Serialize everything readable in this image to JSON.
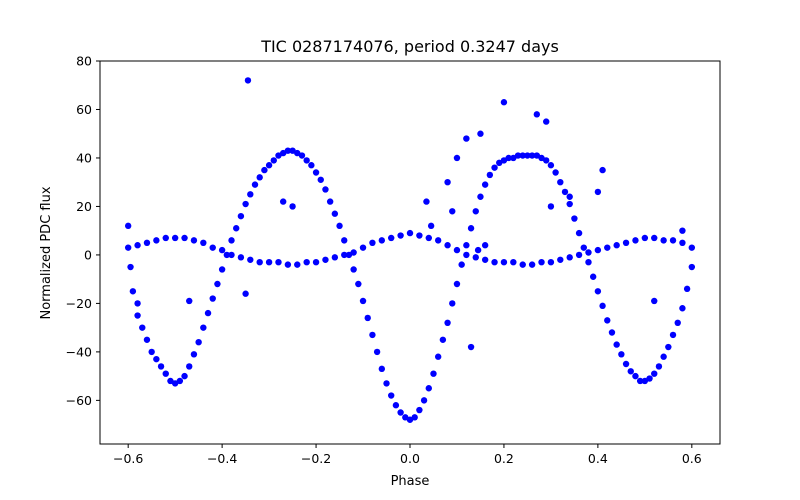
{
  "chart_data": {
    "type": "scatter",
    "title": "TIC 0287174076, period 0.3247 days",
    "xlabel": "Phase",
    "ylabel": "Normalized PDC flux",
    "xlim": [
      -0.66,
      0.66
    ],
    "ylim": [
      -78,
      80
    ],
    "xticks": [
      {
        "value": -0.6,
        "label": "−0.6"
      },
      {
        "value": -0.4,
        "label": "−0.4"
      },
      {
        "value": -0.2,
        "label": "−0.2"
      },
      {
        "value": 0.0,
        "label": "0.0"
      },
      {
        "value": 0.2,
        "label": "0.2"
      },
      {
        "value": 0.4,
        "label": "0.4"
      },
      {
        "value": 0.6,
        "label": "0.6"
      }
    ],
    "yticks": [
      {
        "value": -60,
        "label": "−60"
      },
      {
        "value": -40,
        "label": "−40"
      },
      {
        "value": -20,
        "label": "−20"
      },
      {
        "value": 0,
        "label": "0"
      },
      {
        "value": 20,
        "label": "20"
      },
      {
        "value": 40,
        "label": "40"
      },
      {
        "value": 60,
        "label": "60"
      },
      {
        "value": 80,
        "label": "80"
      }
    ],
    "grid": false,
    "marker_color": "#0000ff",
    "series": [
      {
        "points": [
          [
            -0.6,
            12
          ],
          [
            -0.595,
            -5
          ],
          [
            -0.59,
            -15
          ],
          [
            -0.58,
            -25
          ],
          [
            -0.57,
            -30
          ],
          [
            -0.56,
            -35
          ],
          [
            -0.55,
            -40
          ],
          [
            -0.54,
            -43
          ],
          [
            -0.53,
            -46
          ],
          [
            -0.52,
            -49
          ],
          [
            -0.51,
            -52
          ],
          [
            -0.5,
            -53
          ],
          [
            -0.49,
            -52
          ],
          [
            -0.48,
            -50
          ],
          [
            -0.47,
            -46
          ],
          [
            -0.46,
            -41
          ],
          [
            -0.45,
            -36
          ],
          [
            -0.44,
            -30
          ],
          [
            -0.43,
            -24
          ],
          [
            -0.42,
            -18
          ],
          [
            -0.41,
            -12
          ],
          [
            -0.4,
            -6
          ],
          [
            -0.39,
            0
          ],
          [
            -0.38,
            6
          ],
          [
            -0.37,
            11
          ],
          [
            -0.36,
            16
          ],
          [
            -0.35,
            21
          ],
          [
            -0.34,
            25
          ],
          [
            -0.33,
            29
          ],
          [
            -0.32,
            32
          ],
          [
            -0.31,
            35
          ],
          [
            -0.3,
            37
          ],
          [
            -0.29,
            39
          ],
          [
            -0.28,
            41
          ],
          [
            -0.27,
            42
          ],
          [
            -0.26,
            43
          ],
          [
            -0.25,
            43
          ],
          [
            -0.24,
            42
          ],
          [
            -0.23,
            41
          ],
          [
            -0.22,
            39
          ],
          [
            -0.21,
            37
          ],
          [
            -0.2,
            34
          ],
          [
            -0.19,
            31
          ],
          [
            -0.18,
            27
          ],
          [
            -0.17,
            22
          ],
          [
            -0.16,
            17
          ],
          [
            -0.15,
            12
          ],
          [
            -0.14,
            6
          ],
          [
            -0.13,
            0
          ],
          [
            -0.12,
            -6
          ],
          [
            -0.11,
            -12
          ],
          [
            -0.1,
            -19
          ],
          [
            -0.09,
            -26
          ],
          [
            -0.08,
            -33
          ],
          [
            -0.07,
            -40
          ],
          [
            -0.06,
            -47
          ],
          [
            -0.05,
            -53
          ],
          [
            -0.04,
            -58
          ],
          [
            -0.03,
            -62
          ],
          [
            -0.02,
            -65
          ],
          [
            -0.01,
            -67
          ],
          [
            0.0,
            -68
          ],
          [
            0.01,
            -67
          ],
          [
            0.02,
            -64
          ],
          [
            0.03,
            -60
          ],
          [
            0.04,
            -55
          ],
          [
            0.05,
            -49
          ],
          [
            0.06,
            -42
          ],
          [
            0.07,
            -35
          ],
          [
            0.08,
            -28
          ],
          [
            0.09,
            -20
          ],
          [
            0.1,
            -12
          ],
          [
            0.11,
            -4
          ],
          [
            0.12,
            4
          ],
          [
            0.13,
            11
          ],
          [
            0.14,
            18
          ],
          [
            0.15,
            24
          ],
          [
            0.16,
            29
          ],
          [
            0.17,
            33
          ],
          [
            0.18,
            36
          ],
          [
            0.19,
            38
          ],
          [
            0.2,
            39
          ],
          [
            0.21,
            40
          ],
          [
            0.22,
            40
          ],
          [
            0.23,
            41
          ],
          [
            0.24,
            41
          ],
          [
            0.25,
            41
          ],
          [
            0.26,
            41
          ],
          [
            0.27,
            41
          ],
          [
            0.28,
            40
          ],
          [
            0.29,
            39
          ],
          [
            0.3,
            37
          ],
          [
            0.31,
            34
          ],
          [
            0.32,
            30
          ],
          [
            0.33,
            26
          ],
          [
            0.34,
            21
          ],
          [
            0.35,
            15
          ],
          [
            0.36,
            9
          ],
          [
            0.37,
            3
          ],
          [
            0.38,
            -3
          ],
          [
            0.39,
            -9
          ],
          [
            0.4,
            -15
          ],
          [
            0.41,
            -21
          ],
          [
            0.42,
            -27
          ],
          [
            0.43,
            -32
          ],
          [
            0.44,
            -37
          ],
          [
            0.45,
            -41
          ],
          [
            0.46,
            -45
          ],
          [
            0.47,
            -48
          ],
          [
            0.48,
            -50
          ],
          [
            0.49,
            -52
          ],
          [
            0.5,
            -52
          ],
          [
            0.51,
            -51
          ],
          [
            0.52,
            -49
          ],
          [
            0.53,
            -46
          ],
          [
            0.54,
            -42
          ],
          [
            0.55,
            -38
          ],
          [
            0.56,
            -33
          ],
          [
            0.57,
            -28
          ],
          [
            0.58,
            -22
          ],
          [
            0.59,
            -14
          ],
          [
            0.6,
            -5
          ],
          [
            -0.6,
            3
          ],
          [
            -0.58,
            4
          ],
          [
            -0.56,
            5
          ],
          [
            -0.54,
            6
          ],
          [
            -0.52,
            7
          ],
          [
            -0.5,
            7
          ],
          [
            -0.48,
            7
          ],
          [
            -0.46,
            6
          ],
          [
            -0.44,
            5
          ],
          [
            -0.42,
            3
          ],
          [
            -0.4,
            2
          ],
          [
            -0.38,
            0
          ],
          [
            -0.36,
            -1
          ],
          [
            -0.34,
            -2
          ],
          [
            -0.32,
            -3
          ],
          [
            -0.3,
            -3
          ],
          [
            -0.28,
            -3
          ],
          [
            -0.26,
            -4
          ],
          [
            -0.24,
            -4
          ],
          [
            -0.22,
            -3
          ],
          [
            -0.2,
            -3
          ],
          [
            -0.18,
            -2
          ],
          [
            -0.16,
            -1
          ],
          [
            -0.14,
            0
          ],
          [
            -0.12,
            1
          ],
          [
            -0.1,
            3
          ],
          [
            -0.08,
            5
          ],
          [
            -0.06,
            6
          ],
          [
            -0.04,
            7
          ],
          [
            -0.02,
            8
          ],
          [
            0.0,
            9
          ],
          [
            0.02,
            8
          ],
          [
            0.04,
            7
          ],
          [
            0.06,
            6
          ],
          [
            0.08,
            4
          ],
          [
            0.1,
            2
          ],
          [
            0.12,
            0
          ],
          [
            0.14,
            -1
          ],
          [
            0.16,
            -2
          ],
          [
            0.18,
            -3
          ],
          [
            0.2,
            -3
          ],
          [
            0.22,
            -3
          ],
          [
            0.24,
            -4
          ],
          [
            0.26,
            -4
          ],
          [
            0.28,
            -3
          ],
          [
            0.3,
            -3
          ],
          [
            0.32,
            -2
          ],
          [
            0.34,
            -1
          ],
          [
            0.36,
            0
          ],
          [
            0.38,
            1
          ],
          [
            0.4,
            2
          ],
          [
            0.42,
            3
          ],
          [
            0.44,
            4
          ],
          [
            0.46,
            5
          ],
          [
            0.48,
            6
          ],
          [
            0.5,
            7
          ],
          [
            0.52,
            7
          ],
          [
            0.54,
            6
          ],
          [
            0.56,
            6
          ],
          [
            0.58,
            5
          ],
          [
            0.6,
            3
          ],
          [
            -0.345,
            72
          ],
          [
            0.2,
            63
          ],
          [
            0.27,
            58
          ],
          [
            0.29,
            55
          ],
          [
            0.15,
            50
          ],
          [
            0.12,
            48
          ],
          [
            0.1,
            40
          ],
          [
            0.08,
            30
          ],
          [
            0.09,
            18
          ],
          [
            0.045,
            12
          ],
          [
            0.035,
            22
          ],
          [
            0.13,
            -38
          ],
          [
            -0.35,
            -16
          ],
          [
            -0.47,
            -19
          ],
          [
            0.52,
            -19
          ],
          [
            -0.58,
            -20
          ],
          [
            -0.25,
            20
          ],
          [
            -0.27,
            22
          ],
          [
            0.41,
            35
          ],
          [
            0.4,
            26
          ],
          [
            0.3,
            20
          ],
          [
            0.34,
            24
          ],
          [
            0.58,
            10
          ],
          [
            0.145,
            2
          ],
          [
            0.16,
            4
          ]
        ]
      }
    ]
  }
}
